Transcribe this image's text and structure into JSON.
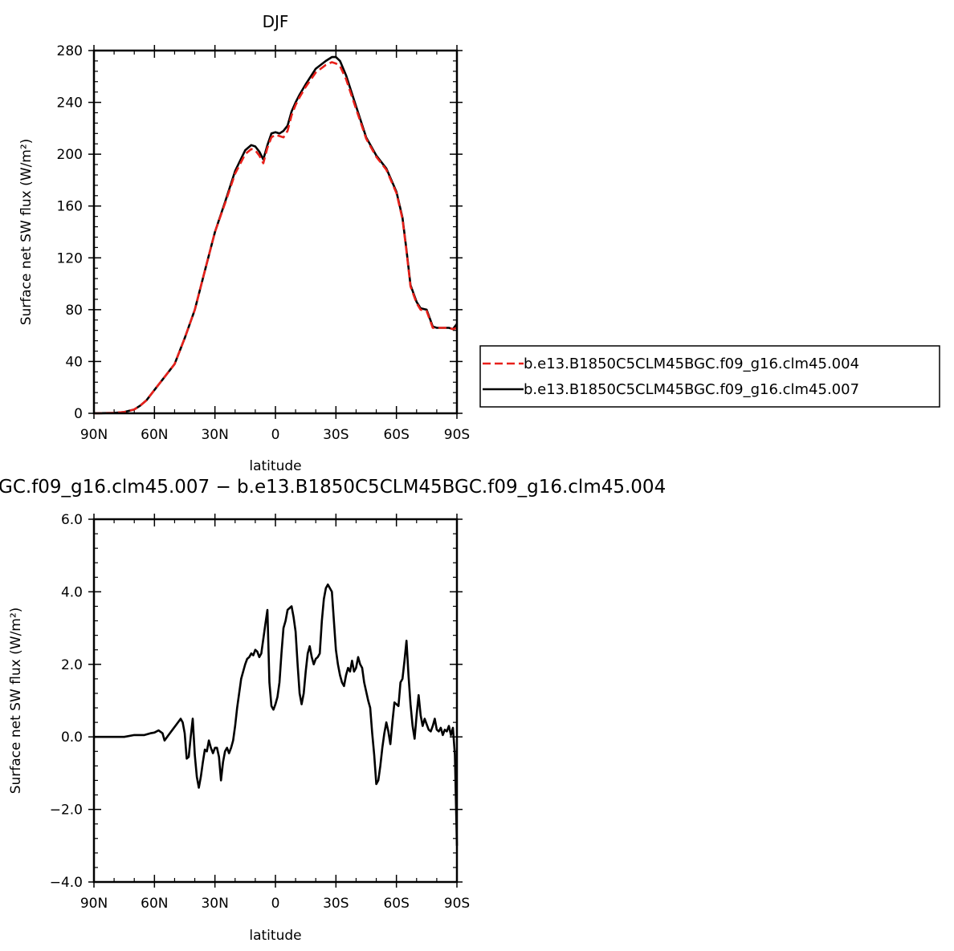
{
  "chart_data": [
    {
      "type": "line",
      "title": "DJF",
      "xlabel": "latitude",
      "ylabel": "Surface net SW flux (W/m²)",
      "xlim": [
        -90,
        90
      ],
      "ylim": [
        0,
        280
      ],
      "x_ticks": [
        -90,
        -60,
        -30,
        0,
        30,
        60,
        90
      ],
      "x_tick_labels": [
        "90N",
        "60N",
        "30N",
        "0",
        "30S",
        "60S",
        "90S"
      ],
      "y_ticks": [
        0,
        40,
        80,
        120,
        160,
        200,
        240,
        280
      ],
      "y_tick_labels": [
        "0",
        "40",
        "80",
        "120",
        "160",
        "200",
        "240",
        "280"
      ],
      "legend": "right",
      "series": [
        {
          "name": "b.e13.B1850C5CLM45BGC.f09_g16.clm45.004",
          "color": "#e8201a",
          "dash": "dashed",
          "x": [
            -90,
            -80,
            -75,
            -70,
            -67,
            -64,
            -60,
            -55,
            -50,
            -45,
            -40,
            -35,
            -30,
            -25,
            -20,
            -15,
            -12,
            -10,
            -8,
            -6,
            -4,
            -2,
            0,
            2,
            4,
            6,
            8,
            10,
            12,
            15,
            20,
            25,
            28,
            30,
            32,
            35,
            40,
            45,
            50,
            55,
            60,
            63,
            65,
            67,
            70,
            72,
            75,
            78,
            80,
            83,
            86,
            88,
            90
          ],
          "y": [
            0,
            0.3,
            1,
            3,
            6,
            10,
            18,
            28,
            38,
            58,
            80,
            110,
            140,
            162,
            185,
            200,
            204,
            203,
            199,
            193,
            205,
            213,
            215,
            214,
            213,
            218,
            230,
            238,
            244,
            252,
            263,
            269,
            271,
            270,
            268,
            258,
            235,
            212,
            198,
            188,
            170,
            150,
            125,
            98,
            85,
            80,
            79,
            66,
            66,
            66,
            66,
            65,
            66
          ]
        },
        {
          "name": "b.e13.B1850C5CLM45BGC.f09_g16.clm45.007",
          "color": "#000000",
          "dash": "solid",
          "x": [
            -90,
            -80,
            -75,
            -70,
            -67,
            -64,
            -60,
            -55,
            -50,
            -45,
            -40,
            -35,
            -30,
            -25,
            -20,
            -15,
            -12,
            -10,
            -8,
            -6,
            -4,
            -2,
            0,
            2,
            4,
            6,
            8,
            10,
            12,
            15,
            20,
            25,
            28,
            30,
            32,
            35,
            40,
            45,
            50,
            55,
            60,
            63,
            65,
            67,
            70,
            72,
            75,
            78,
            80,
            83,
            86,
            88,
            90
          ],
          "y": [
            0,
            0.3,
            1,
            3,
            6,
            10,
            18,
            28,
            38,
            58,
            80,
            110,
            140,
            163,
            187,
            203,
            207,
            206,
            202,
            196,
            207,
            216,
            217,
            216,
            218,
            222,
            233,
            240,
            246,
            254,
            266,
            272,
            275,
            275,
            272,
            261,
            237,
            213,
            199,
            189,
            171,
            151,
            126,
            99,
            86,
            81,
            80,
            67,
            66,
            66,
            66,
            65,
            69
          ]
        }
      ]
    },
    {
      "type": "line",
      "title": "GC.f09_g16.clm45.007 − b.e13.B1850C5CLM45BGC.f09_g16.clm45.004",
      "xlabel": "latitude",
      "ylabel": "Surface net SW flux (W/m²)",
      "xlim": [
        -90,
        90
      ],
      "ylim": [
        -4,
        6
      ],
      "x_ticks": [
        -90,
        -60,
        -30,
        0,
        30,
        60,
        90
      ],
      "x_tick_labels": [
        "90N",
        "60N",
        "30N",
        "0",
        "30S",
        "60S",
        "90S"
      ],
      "y_ticks": [
        -4,
        -2,
        0,
        2,
        4,
        6
      ],
      "y_tick_labels": [
        "−4.0",
        "−2.0",
        "0.0",
        "2.0",
        "4.0",
        "6.0"
      ],
      "series": [
        {
          "color": "#000000",
          "dash": "solid",
          "x": [
            -90,
            -75,
            -70,
            -65,
            -62,
            -60,
            -58,
            -56,
            -55,
            -53,
            -51,
            -49,
            -47,
            -46,
            -45,
            -44,
            -43,
            -42,
            -41,
            -40,
            -39,
            -38,
            -37,
            -36,
            -35,
            -34,
            -33,
            -32,
            -31,
            -30,
            -29,
            -28,
            -27,
            -26,
            -25,
            -24,
            -23,
            -22,
            -21,
            -20,
            -19,
            -18,
            -17,
            -16,
            -15,
            -14,
            -13,
            -12,
            -11,
            -10,
            -9,
            -8,
            -7,
            -6,
            -5,
            -4,
            -3,
            -2,
            -1,
            0,
            1,
            2,
            3,
            4,
            5,
            6,
            7,
            8,
            9,
            10,
            11,
            12,
            13,
            14,
            15,
            16,
            17,
            18,
            19,
            20,
            21,
            22,
            23,
            24,
            25,
            26,
            27,
            28,
            29,
            30,
            31,
            32,
            33,
            34,
            35,
            36,
            37,
            38,
            39,
            40,
            41,
            42,
            43,
            44,
            45,
            46,
            47,
            48,
            49,
            50,
            51,
            52,
            53,
            54,
            55,
            56,
            57,
            58,
            59,
            60,
            61,
            62,
            63,
            64,
            65,
            66,
            67,
            68,
            69,
            70,
            71,
            72,
            73,
            74,
            75,
            76,
            77,
            78,
            79,
            80,
            81,
            82,
            83,
            84,
            85,
            86,
            87,
            88,
            89,
            90
          ],
          "y": [
            0,
            0,
            0.05,
            0.05,
            0.1,
            0.12,
            0.18,
            0.1,
            -0.1,
            0.05,
            0.2,
            0.35,
            0.5,
            0.4,
            0.1,
            -0.6,
            -0.55,
            0,
            0.5,
            -0.5,
            -1.1,
            -1.4,
            -1.1,
            -0.7,
            -0.35,
            -0.4,
            -0.1,
            -0.3,
            -0.45,
            -0.3,
            -0.3,
            -0.55,
            -1.2,
            -0.7,
            -0.4,
            -0.3,
            -0.45,
            -0.3,
            -0.1,
            0.3,
            0.8,
            1.2,
            1.6,
            1.8,
            2.0,
            2.15,
            2.2,
            2.3,
            2.25,
            2.4,
            2.35,
            2.2,
            2.3,
            2.7,
            3.1,
            3.5,
            1.5,
            0.85,
            0.75,
            0.9,
            1.1,
            1.5,
            2.3,
            3.0,
            3.2,
            3.5,
            3.55,
            3.6,
            3.3,
            2.9,
            2.0,
            1.2,
            0.9,
            1.2,
            1.8,
            2.3,
            2.5,
            2.2,
            2.0,
            2.15,
            2.2,
            2.3,
            3.2,
            3.8,
            4.1,
            4.2,
            4.1,
            4.0,
            3.2,
            2.4,
            2.0,
            1.7,
            1.5,
            1.4,
            1.7,
            1.9,
            1.8,
            2.1,
            1.8,
            1.9,
            2.2,
            2.0,
            1.9,
            1.5,
            1.25,
            1.0,
            0.8,
            0.1,
            -0.5,
            -1.3,
            -1.2,
            -0.8,
            -0.3,
            0.1,
            0.4,
            0.15,
            -0.2,
            0.4,
            0.95,
            0.9,
            0.85,
            1.5,
            1.6,
            2.1,
            2.65,
            1.7,
            0.9,
            0.3,
            -0.05,
            0.6,
            1.15,
            0.6,
            0.3,
            0.5,
            0.35,
            0.2,
            0.15,
            0.3,
            0.5,
            0.2,
            0.15,
            0.25,
            0.05,
            0.2,
            0.15,
            0.3,
            0.05,
            0.25,
            -0.5,
            -3.0
          ]
        }
      ]
    }
  ]
}
